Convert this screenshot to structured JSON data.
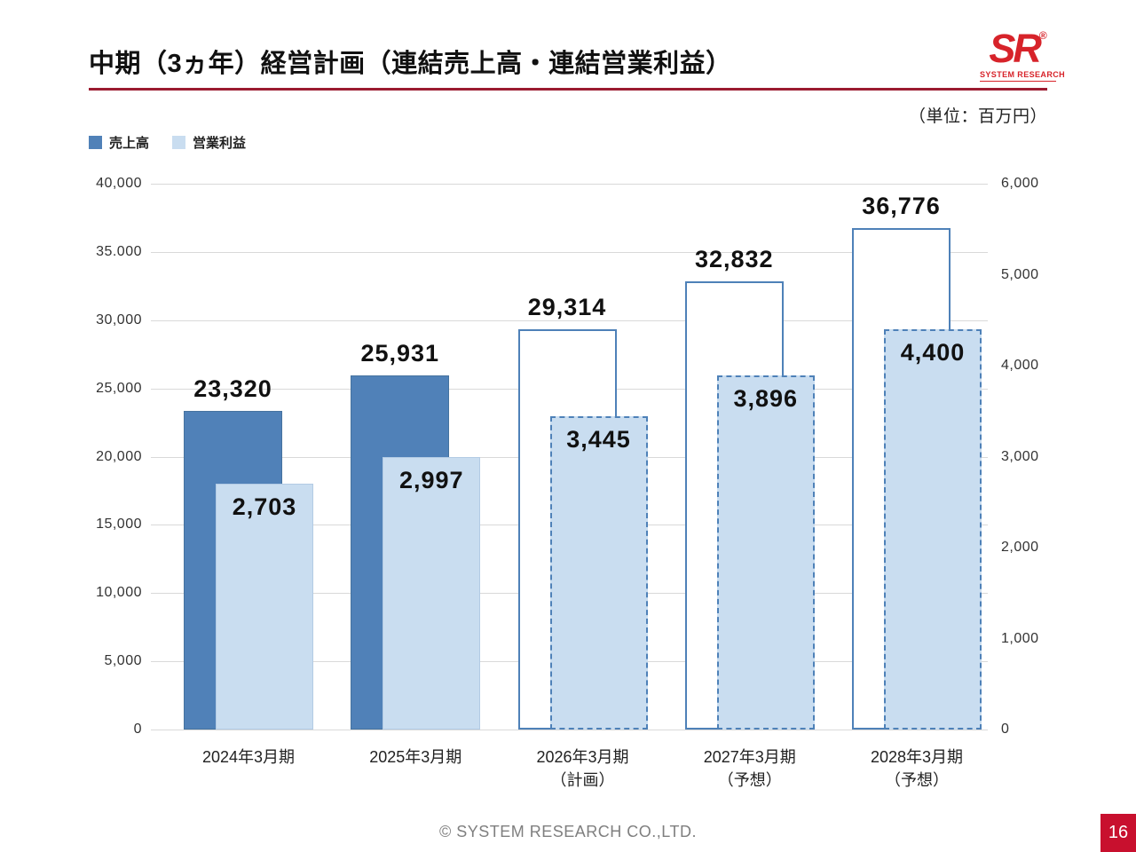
{
  "header": {
    "title": "中期（3ヵ年）経営計画（連結売上高・連結営業利益）",
    "logo": {
      "text": "SR",
      "reg": "®",
      "subtext": "SYSTEM RESEARCH",
      "color": "#d7232a"
    }
  },
  "legend": [
    {
      "label": "売上高",
      "color": "#5081b8"
    },
    {
      "label": "営業利益",
      "color": "#c9ddf0"
    }
  ],
  "footer": {
    "copyright": "© SYSTEM RESEARCH CO.,LTD.",
    "page_number": "16"
  },
  "chart_data": {
    "type": "bar",
    "title": "中期（3ヵ年）経営計画（連結売上高・連結営業利益）",
    "unit_label": "（単位：百万円）",
    "categories": [
      [
        "2024年3月期"
      ],
      [
        "2025年3月期"
      ],
      [
        "2026年3月期",
        "（計画）"
      ],
      [
        "2027年3月期",
        "（予想）"
      ],
      [
        "2028年3月期",
        "（予想）"
      ]
    ],
    "series": [
      {
        "name": "売上高",
        "axis": "left",
        "values": [
          23320,
          25931,
          29314,
          32832,
          36776
        ],
        "display_labels": [
          "23,320",
          "25,931",
          "29,314",
          "32,832",
          "36,776"
        ],
        "color": "#5081b8",
        "style_by_group": [
          "solid",
          "solid",
          "outline",
          "outline",
          "outline"
        ]
      },
      {
        "name": "営業利益",
        "axis": "right",
        "values": [
          2703,
          2997,
          3445,
          3896,
          4400
        ],
        "display_labels": [
          "2,703",
          "2,997",
          "3,445",
          "3,896",
          "4,400"
        ],
        "color": "#c9ddf0",
        "style_by_group": [
          "solid",
          "solid",
          "dashed",
          "dashed",
          "dashed"
        ]
      }
    ],
    "left_axis": {
      "min": 0,
      "max": 40000,
      "step": 5000,
      "tick_labels": [
        "40,000",
        "35.000",
        "30,000",
        "25,000",
        "20,000",
        "15,000",
        "10,000",
        "5,000",
        "0"
      ]
    },
    "right_axis": {
      "min": 0,
      "max": 6000,
      "step": 1000,
      "tick_labels": [
        "6,000",
        "5,000",
        "4,000",
        "3,000",
        "2,000",
        "1,000",
        "0"
      ]
    },
    "grid": true,
    "legend_position": "top-left"
  }
}
